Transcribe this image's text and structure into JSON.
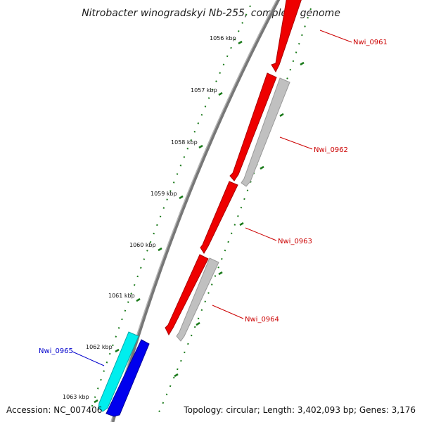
{
  "title": "Nitrobacter winogradskyi Nb-255, complete genome",
  "footer": {
    "accession": "Accession: NC_007406",
    "summary": "Topology: circular; Length: 3,402,093 bp; Genes: 3,176"
  },
  "ticks": [
    "1056 kbp",
    "1057 kbp",
    "1058 kbp",
    "1059 kbp",
    "1060 kbp",
    "1061 kbp",
    "1062 kbp",
    "1063 kbp"
  ],
  "genes": [
    {
      "label": "Nwi_0961",
      "color": "#cc0000"
    },
    {
      "label": "Nwi_0962",
      "color": "#cc0000"
    },
    {
      "label": "Nwi_0963",
      "color": "#cc0000"
    },
    {
      "label": "Nwi_0964",
      "color": "#cc0000"
    },
    {
      "label": "Nwi_0965",
      "color": "#0000cc"
    }
  ],
  "colors": {
    "forward_cds": "#ff0000",
    "forward_rna": "#c0c0c0",
    "reverse_cds": "#0000ff",
    "reverse_rna": "#00ffff",
    "backbone": "#808080",
    "ticks": "#1a7a1a"
  }
}
